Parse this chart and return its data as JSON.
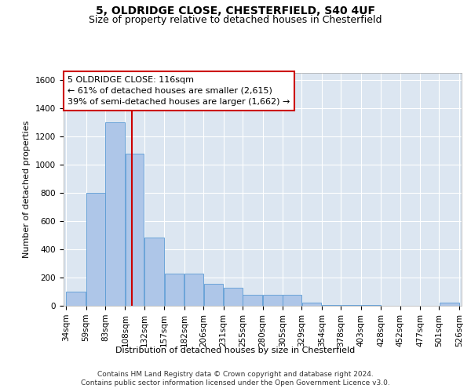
{
  "title1": "5, OLDRIDGE CLOSE, CHESTERFIELD, S40 4UF",
  "title2": "Size of property relative to detached houses in Chesterfield",
  "xlabel": "Distribution of detached houses by size in Chesterfield",
  "ylabel": "Number of detached properties",
  "footer1": "Contains HM Land Registry data © Crown copyright and database right 2024.",
  "footer2": "Contains public sector information licensed under the Open Government Licence v3.0.",
  "annotation_title": "5 OLDRIDGE CLOSE: 116sqm",
  "annotation_line1": "← 61% of detached houses are smaller (2,615)",
  "annotation_line2": "39% of semi-detached houses are larger (1,662) →",
  "property_size": 116,
  "bar_edges": [
    34,
    59,
    83,
    108,
    132,
    157,
    182,
    206,
    231,
    255,
    280,
    305,
    329,
    354,
    378,
    403,
    428,
    452,
    477,
    501,
    526
  ],
  "bar_heights": [
    100,
    800,
    1300,
    1075,
    480,
    230,
    230,
    155,
    130,
    80,
    80,
    75,
    20,
    5,
    5,
    5,
    0,
    0,
    0,
    20
  ],
  "bar_color": "#aec6e8",
  "bar_edge_color": "#5b9bd5",
  "vline_color": "#cc0000",
  "vline_x": 116,
  "annotation_box_color": "#cc0000",
  "ylim": [
    0,
    1650
  ],
  "yticks": [
    0,
    200,
    400,
    600,
    800,
    1000,
    1200,
    1400,
    1600
  ],
  "bg_color": "#dce6f1",
  "fig_bg_color": "#ffffff",
  "grid_color": "#ffffff",
  "title1_fontsize": 10,
  "title2_fontsize": 9,
  "axis_label_fontsize": 8,
  "tick_fontsize": 7.5,
  "annotation_fontsize": 8,
  "footer_fontsize": 6.5
}
